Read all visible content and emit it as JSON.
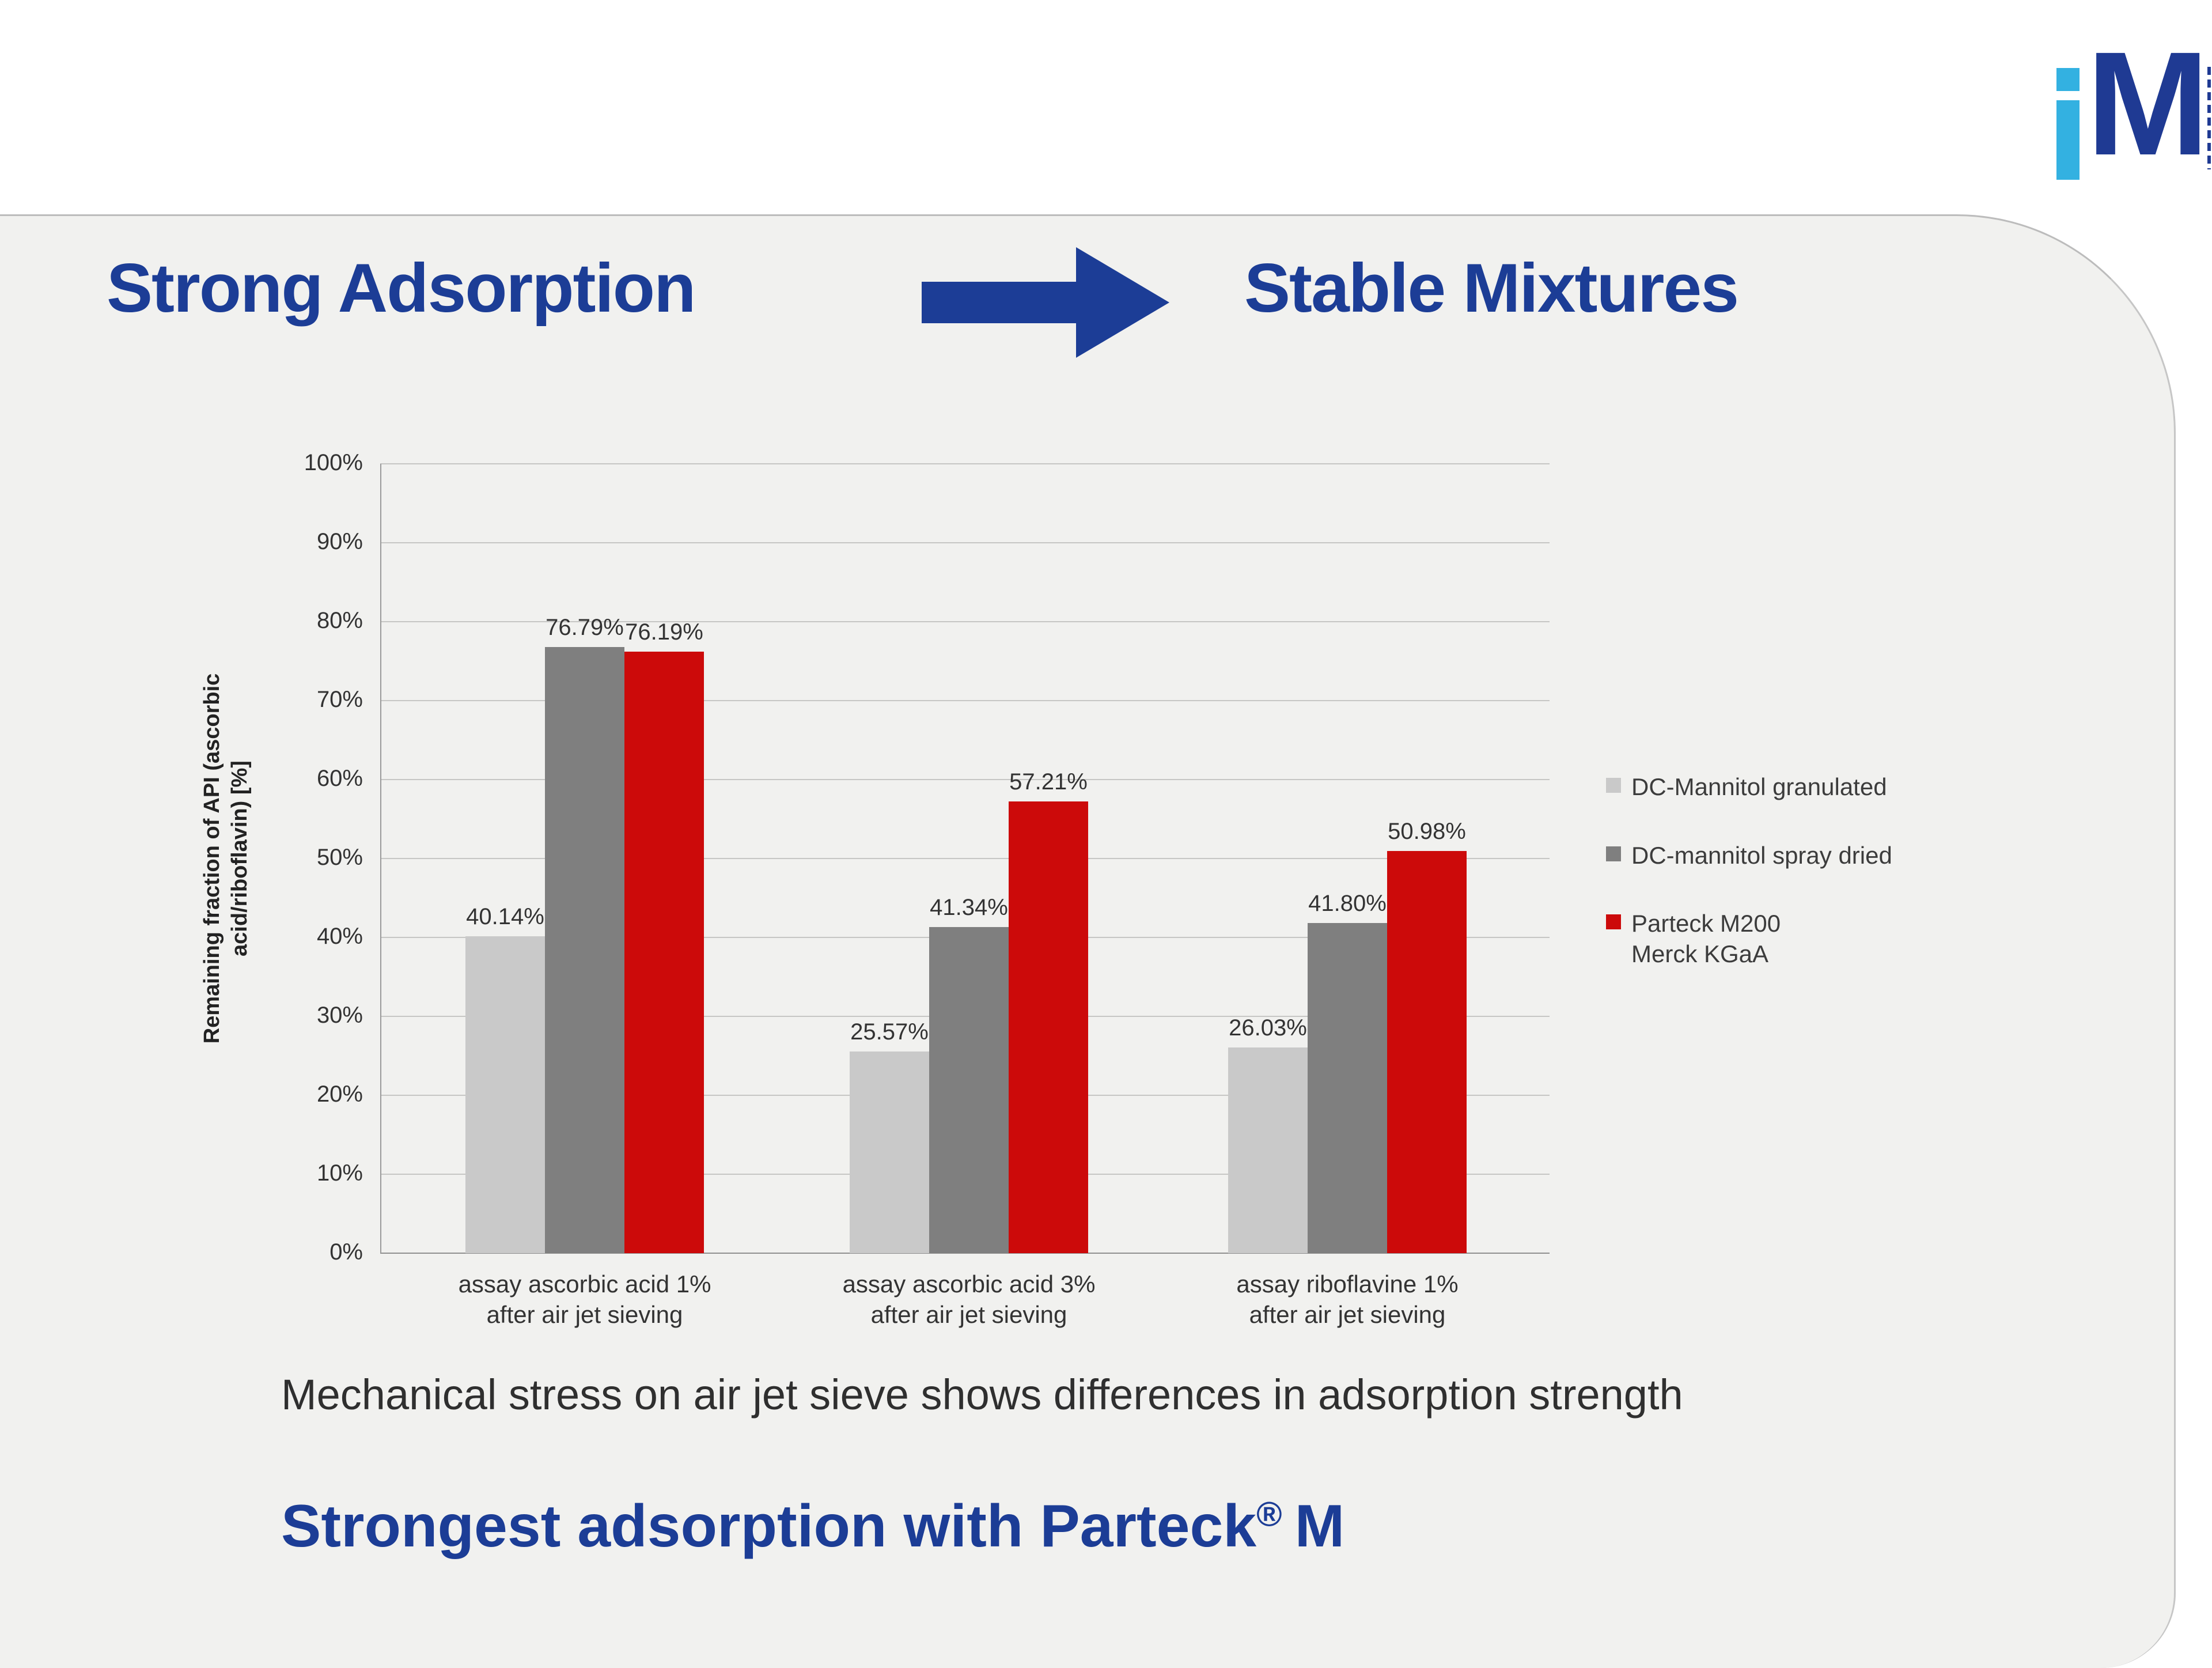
{
  "slide": {
    "title_left": "Strong Adsorption",
    "title_right": "Stable Mixtures",
    "caption": "Mechanical stress on air jet sieve shows differences in adsorption strength",
    "conclusion_prefix": "Strongest adsorption with Parteck",
    "conclusion_reg": "®",
    "conclusion_suffix": "M",
    "logo_letter": "M"
  },
  "colors": {
    "accent_blue": "#1c3d96",
    "bar_light_gray": "#c9c9c9",
    "bar_dark_gray": "#7f7f7f",
    "bar_red": "#cc0a0a",
    "logo_blue": "#1f3a93",
    "logo_light_blue": "#33b1e1"
  },
  "chart_data": {
    "type": "bar",
    "title": "",
    "xlabel": "",
    "ylabel": "Remaining fraction of API (ascorbic acid/riboflavin) [%]",
    "ylabel_lines": [
      "Remaining fraction of API (ascorbic",
      "acid/riboflavin) [%]"
    ],
    "ylim": [
      0,
      100
    ],
    "ytick_step": 10,
    "ytick_suffix": "%",
    "grid": true,
    "legend_position": "right",
    "categories": [
      [
        "assay ascorbic acid 1%",
        "after air jet sieving"
      ],
      [
        "assay ascorbic acid 3%",
        "after air jet sieving"
      ],
      [
        "assay riboflavine 1%",
        "after air jet sieving"
      ]
    ],
    "series": [
      {
        "name": "DC-Mannitol granulated",
        "legend_lines": [
          "DC-Mannitol granulated"
        ],
        "color": "#c9c9c9",
        "values": [
          40.14,
          25.57,
          26.03
        ]
      },
      {
        "name": "DC-mannitol spray dried",
        "legend_lines": [
          "DC-mannitol spray dried"
        ],
        "color": "#7f7f7f",
        "values": [
          76.79,
          41.34,
          41.8
        ]
      },
      {
        "name": "Parteck M200 Merck KGaA",
        "legend_lines": [
          "Parteck M200",
          "Merck KGaA"
        ],
        "color": "#cc0a0a",
        "values": [
          76.19,
          57.21,
          50.98
        ]
      }
    ]
  }
}
